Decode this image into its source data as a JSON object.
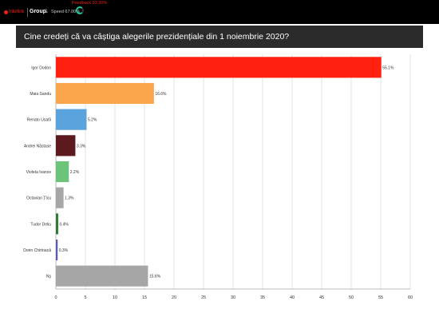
{
  "header": {
    "brand": "Interlink",
    "group_label": "Group",
    "amp": "&",
    "speed_label": "Speed 67.00%",
    "feedback_label": "Feedback 33.00%"
  },
  "chart_data": {
    "type": "bar",
    "orientation": "horizontal",
    "title": "Cine credeți că va câștiga alegerile prezidențiale din 1 noiembrie 2020?",
    "categories": [
      "Igor Dodon",
      "Maia Sandu",
      "Renato Usatîi",
      "Andrei Năstase",
      "Violeta Ivanov",
      "Octavian Țîcu",
      "Tudor Deliu",
      "Dorin Chirtoacă",
      "Nş"
    ],
    "values": [
      55.1,
      16.6,
      5.2,
      3.3,
      2.2,
      1.3,
      0.4,
      0.3,
      15.6
    ],
    "value_labels": [
      "55.1%",
      "16.6%",
      "5.2%",
      "3.3%",
      "2.2%",
      "1.3%",
      "0.4%",
      "0.3%",
      "15.6%"
    ],
    "colors": [
      "#ff2010",
      "#f9a64d",
      "#5aa3dc",
      "#5c1a1f",
      "#6cc37a",
      "#a6a6a6",
      "#2e7d32",
      "#5c5ca8",
      "#a6a6a6"
    ],
    "xlim": [
      0,
      60
    ],
    "xticks": [
      0,
      5,
      10,
      15,
      20,
      25,
      30,
      35,
      40,
      45,
      50,
      55,
      60
    ],
    "grid": true,
    "legend": "none"
  }
}
